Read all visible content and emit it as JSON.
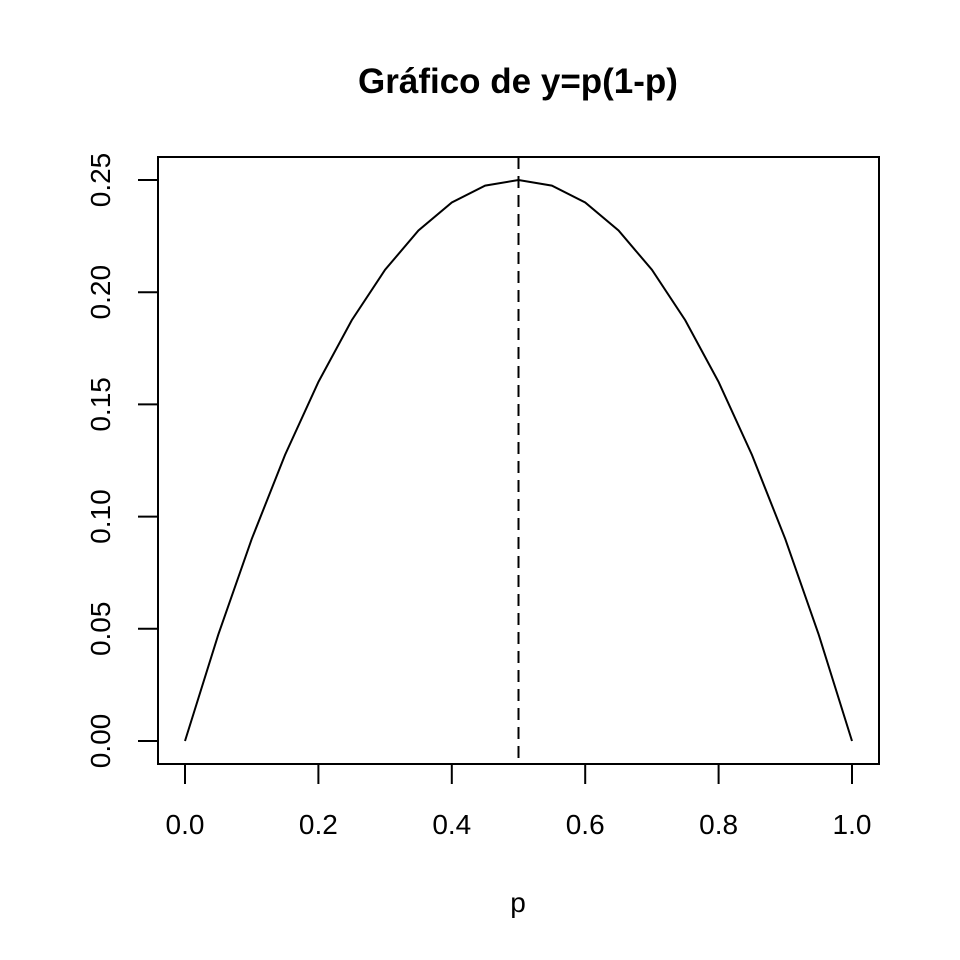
{
  "chart_data": {
    "type": "line",
    "title": "Gráfico de y=p(1-p)",
    "xlabel": "p",
    "ylabel": "",
    "xlim": [
      0,
      1
    ],
    "ylim": [
      0,
      0.25
    ],
    "x_ticks": [
      "0.0",
      "0.2",
      "0.4",
      "0.6",
      "0.8",
      "1.0"
    ],
    "y_ticks": [
      "0.00",
      "0.05",
      "0.10",
      "0.15",
      "0.20",
      "0.25"
    ],
    "series": [
      {
        "x": [
          0.0,
          0.05,
          0.1,
          0.15,
          0.2,
          0.25,
          0.3,
          0.35,
          0.4,
          0.45,
          0.5,
          0.55,
          0.6,
          0.65,
          0.7,
          0.75,
          0.8,
          0.85,
          0.9,
          0.95,
          1.0
        ],
        "y": [
          0.0,
          0.0475,
          0.09,
          0.1275,
          0.16,
          0.1875,
          0.21,
          0.2275,
          0.24,
          0.2475,
          0.25,
          0.2475,
          0.24,
          0.2275,
          0.21,
          0.1875,
          0.16,
          0.1275,
          0.09,
          0.0475,
          0.0
        ]
      }
    ],
    "vertical_reference_line": {
      "x": 0.5,
      "style": "dashed"
    },
    "grid": false,
    "line_color": "#000000"
  }
}
